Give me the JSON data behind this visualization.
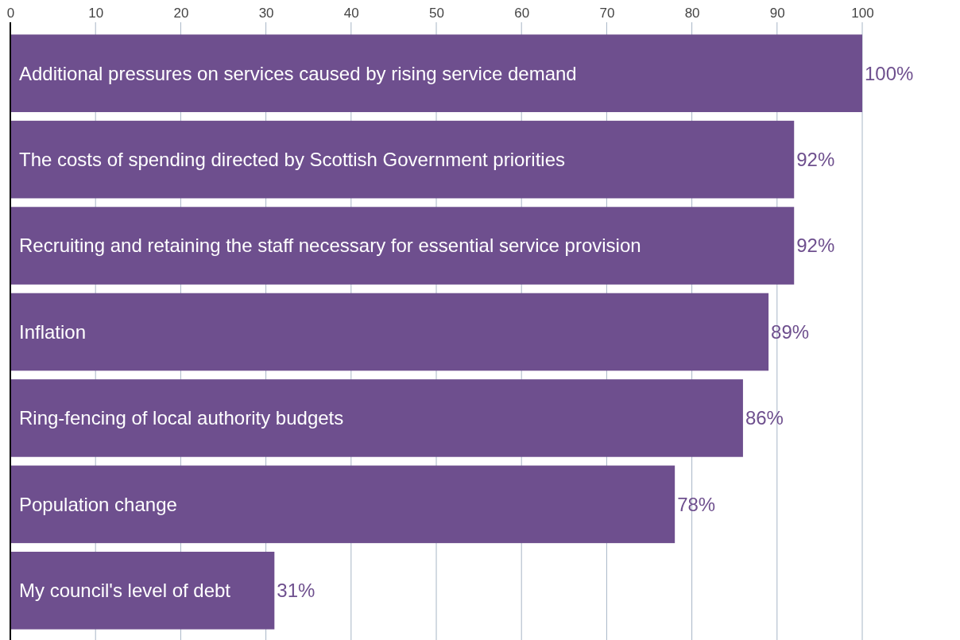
{
  "chart_data": {
    "type": "bar",
    "orientation": "horizontal",
    "categories": [
      "Additional pressures on services caused by rising service demand",
      "The costs of spending directed by Scottish Government priorities",
      "Recruiting and retaining the staff necessary for essential service provision",
      "Inflation",
      "Ring-fencing of local authority budgets",
      "Population change",
      "My council's level of debt"
    ],
    "values": [
      100,
      92,
      92,
      89,
      86,
      78,
      31
    ],
    "value_labels": [
      "100%",
      "92%",
      "92%",
      "89%",
      "86%",
      "78%",
      "31%"
    ],
    "color": "#6e4f8e",
    "xlim": [
      0,
      100
    ],
    "xticks": [
      0,
      10,
      20,
      30,
      40,
      50,
      60,
      70,
      80,
      90,
      100
    ],
    "grid": "x"
  }
}
